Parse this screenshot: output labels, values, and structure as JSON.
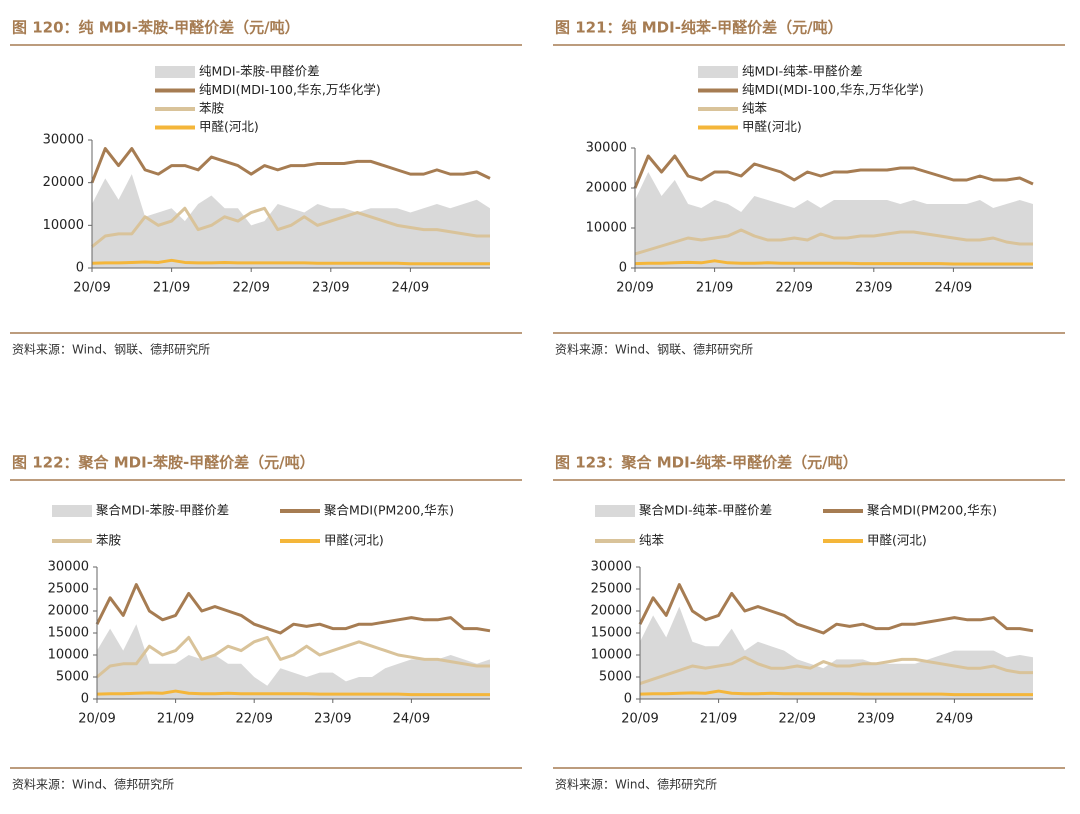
{
  "chart_data": [
    {
      "type": "line",
      "title": "图 120：纯 MDI-苯胺-甲醛价差（元/吨）",
      "source": "资料来源：Wind、钢联、德邦研究所",
      "categories": [
        "20/09",
        null,
        null,
        null,
        null,
        null,
        "21/09",
        null,
        null,
        null,
        null,
        null,
        "22/09",
        null,
        null,
        null,
        null,
        null,
        "23/09",
        null,
        null,
        null,
        null,
        null,
        "24/09",
        null,
        null,
        null,
        null,
        null,
        null
      ],
      "ylim": [
        0,
        30000
      ],
      "yticks": [
        0,
        10000,
        20000,
        30000
      ],
      "series": [
        {
          "name": "纯MDI-苯胺-甲醛价差",
          "kind": "area",
          "color": "#d9d9d9",
          "values": [
            15000,
            21000,
            16000,
            22000,
            12000,
            13000,
            14000,
            11000,
            15000,
            17000,
            14000,
            14000,
            10000,
            11000,
            15000,
            14000,
            13000,
            15000,
            14000,
            14000,
            13000,
            14000,
            14000,
            14000,
            13000,
            14000,
            15000,
            14000,
            15000,
            16000,
            14000
          ]
        },
        {
          "name": "纯MDI(MDI-100,华东,万华化学)",
          "color": "#a67c52",
          "values": [
            20000,
            28000,
            24000,
            28000,
            23000,
            22000,
            24000,
            24000,
            23000,
            26000,
            25000,
            24000,
            22000,
            24000,
            23000,
            24000,
            24000,
            24500,
            24500,
            24500,
            25000,
            25000,
            24000,
            23000,
            22000,
            22000,
            23000,
            22000,
            22000,
            22500,
            21000
          ]
        },
        {
          "name": "苯胺",
          "color": "#d9c39a",
          "values": [
            5000,
            7500,
            8000,
            8000,
            12000,
            10000,
            11000,
            14000,
            9000,
            10000,
            12000,
            11000,
            13000,
            14000,
            9000,
            10000,
            12000,
            10000,
            11000,
            12000,
            13000,
            12000,
            11000,
            10000,
            9500,
            9000,
            9000,
            8500,
            8000,
            7500,
            7500
          ]
        },
        {
          "name": "甲醛(河北)",
          "color": "#f4b63a",
          "values": [
            1100,
            1200,
            1200,
            1300,
            1400,
            1300,
            1800,
            1300,
            1200,
            1200,
            1300,
            1200,
            1200,
            1200,
            1200,
            1200,
            1200,
            1100,
            1100,
            1100,
            1100,
            1100,
            1100,
            1100,
            1000,
            1000,
            1000,
            1000,
            1000,
            1000,
            1000
          ]
        }
      ]
    },
    {
      "type": "line",
      "title": "图 121：纯 MDI-纯苯-甲醛价差（元/吨）",
      "source": "资料来源：Wind、钢联、德邦研究所",
      "categories": [
        "20/09",
        null,
        null,
        null,
        null,
        null,
        "21/09",
        null,
        null,
        null,
        null,
        null,
        "22/09",
        null,
        null,
        null,
        null,
        null,
        "23/09",
        null,
        null,
        null,
        null,
        null,
        "24/09",
        null,
        null,
        null,
        null,
        null,
        null
      ],
      "ylim": [
        0,
        30000
      ],
      "yticks": [
        0,
        10000,
        20000,
        30000
      ],
      "series": [
        {
          "name": "纯MDI-纯苯-甲醛价差",
          "kind": "area",
          "color": "#d9d9d9",
          "values": [
            17000,
            24000,
            18000,
            22000,
            16000,
            15000,
            17000,
            16000,
            14000,
            18000,
            17000,
            16000,
            15000,
            17000,
            15000,
            17000,
            17000,
            17000,
            17000,
            17000,
            16000,
            17000,
            16000,
            16000,
            16000,
            16000,
            17000,
            15000,
            16000,
            17000,
            16000
          ]
        },
        {
          "name": "纯MDI(MDI-100,华东,万华化学)",
          "color": "#a67c52",
          "values": [
            20000,
            28000,
            24000,
            28000,
            23000,
            22000,
            24000,
            24000,
            23000,
            26000,
            25000,
            24000,
            22000,
            24000,
            23000,
            24000,
            24000,
            24500,
            24500,
            24500,
            25000,
            25000,
            24000,
            23000,
            22000,
            22000,
            23000,
            22000,
            22000,
            22500,
            21000
          ]
        },
        {
          "name": "纯苯",
          "color": "#d9c39a",
          "values": [
            3500,
            4500,
            5500,
            6500,
            7500,
            7000,
            7500,
            8000,
            9500,
            8000,
            7000,
            7000,
            7500,
            7000,
            8500,
            7500,
            7500,
            8000,
            8000,
            8500,
            9000,
            9000,
            8500,
            8000,
            7500,
            7000,
            7000,
            7500,
            6500,
            6000,
            6000
          ]
        },
        {
          "name": "甲醛(河北)",
          "color": "#f4b63a",
          "values": [
            1100,
            1200,
            1200,
            1300,
            1400,
            1300,
            1800,
            1300,
            1200,
            1200,
            1300,
            1200,
            1200,
            1200,
            1200,
            1200,
            1200,
            1100,
            1100,
            1100,
            1100,
            1100,
            1100,
            1100,
            1000,
            1000,
            1000,
            1000,
            1000,
            1000,
            1000
          ]
        }
      ]
    },
    {
      "type": "line",
      "title": "图 122：聚合 MDI-苯胺-甲醛价差（元/吨）",
      "source": "资料来源：Wind、德邦研究所",
      "categories": [
        "20/09",
        null,
        null,
        null,
        null,
        null,
        "21/09",
        null,
        null,
        null,
        null,
        null,
        "22/09",
        null,
        null,
        null,
        null,
        null,
        "23/09",
        null,
        null,
        null,
        null,
        null,
        "24/09",
        null,
        null,
        null,
        null,
        null,
        null
      ],
      "ylim": [
        0,
        30000
      ],
      "yticks": [
        0,
        5000,
        10000,
        15000,
        20000,
        25000,
        30000
      ],
      "series": [
        {
          "name": "聚合MDI-苯胺-甲醛价差",
          "kind": "area",
          "color": "#d9d9d9",
          "values": [
            11000,
            16000,
            11000,
            17000,
            8000,
            8000,
            8000,
            10000,
            9000,
            10000,
            8000,
            8000,
            5000,
            3000,
            7000,
            6000,
            5000,
            6000,
            6000,
            4000,
            5000,
            5000,
            7000,
            8000,
            9000,
            9000,
            9000,
            10000,
            9000,
            8000,
            9000
          ]
        },
        {
          "name": "聚合MDI(PM200,华东)",
          "color": "#a67c52",
          "values": [
            17000,
            23000,
            19000,
            26000,
            20000,
            18000,
            19000,
            24000,
            20000,
            21000,
            20000,
            19000,
            17000,
            16000,
            15000,
            17000,
            16500,
            17000,
            16000,
            16000,
            17000,
            17000,
            17500,
            18000,
            18500,
            18000,
            18000,
            18500,
            16000,
            16000,
            15500
          ]
        },
        {
          "name": "苯胺",
          "color": "#d9c39a",
          "values": [
            5000,
            7500,
            8000,
            8000,
            12000,
            10000,
            11000,
            14000,
            9000,
            10000,
            12000,
            11000,
            13000,
            14000,
            9000,
            10000,
            12000,
            10000,
            11000,
            12000,
            13000,
            12000,
            11000,
            10000,
            9500,
            9000,
            9000,
            8500,
            8000,
            7500,
            7500
          ]
        },
        {
          "name": "甲醛(河北)",
          "color": "#f4b63a",
          "values": [
            1100,
            1200,
            1200,
            1300,
            1400,
            1300,
            1800,
            1300,
            1200,
            1200,
            1300,
            1200,
            1200,
            1200,
            1200,
            1200,
            1200,
            1100,
            1100,
            1100,
            1100,
            1100,
            1100,
            1100,
            1000,
            1000,
            1000,
            1000,
            1000,
            1000,
            1000
          ]
        }
      ]
    },
    {
      "type": "line",
      "title": "图 123：聚合 MDI-纯苯-甲醛价差（元/吨）",
      "source": "资料来源：Wind、德邦研究所",
      "categories": [
        "20/09",
        null,
        null,
        null,
        null,
        null,
        "21/09",
        null,
        null,
        null,
        null,
        null,
        "22/09",
        null,
        null,
        null,
        null,
        null,
        "23/09",
        null,
        null,
        null,
        null,
        null,
        "24/09",
        null,
        null,
        null,
        null,
        null,
        null
      ],
      "ylim": [
        0,
        30000
      ],
      "yticks": [
        0,
        5000,
        10000,
        15000,
        20000,
        25000,
        30000
      ],
      "series": [
        {
          "name": "聚合MDI-纯苯-甲醛价差",
          "kind": "area",
          "color": "#d9d9d9",
          "values": [
            13000,
            19000,
            14000,
            21000,
            13000,
            12000,
            12000,
            16000,
            11000,
            13000,
            12000,
            11000,
            9000,
            8000,
            7000,
            9000,
            9000,
            9000,
            8000,
            8000,
            8000,
            8000,
            9000,
            10000,
            11000,
            11000,
            11000,
            11000,
            9500,
            10000,
            9500
          ]
        },
        {
          "name": "聚合MDI(PM200,华东)",
          "color": "#a67c52",
          "values": [
            17000,
            23000,
            19000,
            26000,
            20000,
            18000,
            19000,
            24000,
            20000,
            21000,
            20000,
            19000,
            17000,
            16000,
            15000,
            17000,
            16500,
            17000,
            16000,
            16000,
            17000,
            17000,
            17500,
            18000,
            18500,
            18000,
            18000,
            18500,
            16000,
            16000,
            15500
          ]
        },
        {
          "name": "纯苯",
          "color": "#d9c39a",
          "values": [
            3500,
            4500,
            5500,
            6500,
            7500,
            7000,
            7500,
            8000,
            9500,
            8000,
            7000,
            7000,
            7500,
            7000,
            8500,
            7500,
            7500,
            8000,
            8000,
            8500,
            9000,
            9000,
            8500,
            8000,
            7500,
            7000,
            7000,
            7500,
            6500,
            6000,
            6000
          ]
        },
        {
          "name": "甲醛(河北)",
          "color": "#f4b63a",
          "values": [
            1100,
            1200,
            1200,
            1300,
            1400,
            1300,
            1800,
            1300,
            1200,
            1200,
            1300,
            1200,
            1200,
            1200,
            1200,
            1200,
            1200,
            1100,
            1100,
            1100,
            1100,
            1100,
            1100,
            1100,
            1000,
            1000,
            1000,
            1000,
            1000,
            1000,
            1000
          ]
        }
      ]
    }
  ]
}
